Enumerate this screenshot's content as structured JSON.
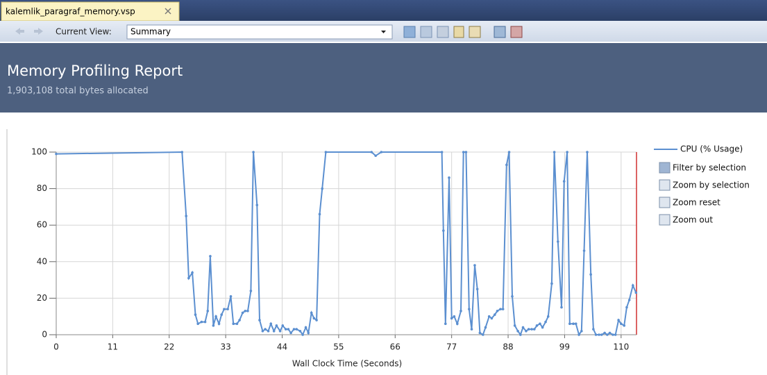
{
  "tab": {
    "label": "kalemlik_paragraf_memory.vsp"
  },
  "toolbar": {
    "current_view_label": "Current View:",
    "current_view_value": "Summary"
  },
  "header": {
    "title": "Memory Profiling Report",
    "subtitle": "1,903,108 total bytes allocated"
  },
  "chart_data": {
    "type": "line",
    "x_label": "Wall Clock Time (Seconds)",
    "x": [
      0,
      24.5,
      25.3,
      25.8,
      26.5,
      27.1,
      27.6,
      28.3,
      29,
      29.5,
      30,
      30.6,
      31.1,
      31.7,
      32.2,
      32.7,
      33.4,
      34,
      34.5,
      35.2,
      35.7,
      36.3,
      36.8,
      37.3,
      37.9,
      38.4,
      39.1,
      39.6,
      40.2,
      40.7,
      41.3,
      41.8,
      42.4,
      42.9,
      43.6,
      44.1,
      44.7,
      45.2,
      45.7,
      46.3,
      46.8,
      47.5,
      48,
      48.6,
      49.1,
      49.7,
      50.2,
      50.7,
      51.3,
      51.8,
      52.5,
      61.4,
      62.2,
      63.3,
      75.1,
      75.4,
      75.8,
      76.5,
      77,
      77.5,
      78.1,
      78.8,
      79.3,
      79.8,
      80.4,
      80.9,
      81.5,
      82,
      82.5,
      83.1,
      83.6,
      84.3,
      84.8,
      85.4,
      85.9,
      86.5,
      87,
      87.7,
      88.2,
      88.8,
      89.3,
      89.9,
      90.4,
      90.9,
      91.5,
      92,
      92.6,
      93.1,
      93.6,
      94.2,
      94.7,
      95.3,
      95.8,
      96.5,
      97,
      97.7,
      98.4,
      98.9,
      99.5,
      100,
      100.7,
      101.2,
      101.8,
      102.3,
      102.8,
      103.4,
      104.1,
      104.6,
      105.1,
      105.7,
      106.2,
      106.8,
      107.3,
      107.8,
      108.4,
      108.9,
      109.5,
      110,
      110.6,
      111.1,
      111.6,
      112.3,
      112.9
    ],
    "series": [
      {
        "name": "CPU (% Usage)",
        "color": "#5b8fd0",
        "values": [
          99,
          100,
          65,
          31,
          34,
          11,
          6,
          7,
          7,
          13,
          43,
          5,
          10,
          6,
          11,
          14,
          14,
          21,
          6,
          6,
          8,
          12,
          13,
          13,
          24,
          100,
          71,
          8,
          2,
          3,
          2,
          6,
          2,
          5,
          2,
          5,
          3,
          3,
          1,
          3,
          3,
          2,
          0,
          4,
          1,
          12,
          9,
          8,
          66,
          80,
          100,
          100,
          98,
          100,
          100,
          57,
          6,
          86,
          9,
          10,
          6,
          13,
          100,
          100,
          14,
          3,
          38,
          25,
          1,
          0,
          4,
          10,
          9,
          11,
          13,
          14,
          14,
          93,
          100,
          21,
          5,
          2,
          0,
          4,
          2,
          3,
          3,
          3,
          5,
          6,
          4,
          7,
          10,
          28,
          100,
          51,
          15,
          84,
          100,
          6,
          6,
          6,
          0,
          2,
          46,
          100,
          33,
          3,
          0,
          0,
          0,
          1,
          0,
          1,
          0,
          0,
          8,
          6,
          5,
          15,
          19,
          27,
          23
        ]
      }
    ],
    "xlim": [
      0,
      113
    ],
    "xticks": [
      0,
      11,
      22,
      33,
      44,
      55,
      66,
      77,
      88,
      99,
      110
    ],
    "ylim": [
      0,
      100
    ],
    "yticks": [
      0,
      20,
      40,
      60,
      80,
      100
    ],
    "grid": true,
    "legend": "right"
  },
  "legend_actions": [
    "Filter by selection",
    "Zoom by selection",
    "Zoom reset",
    "Zoom out"
  ]
}
